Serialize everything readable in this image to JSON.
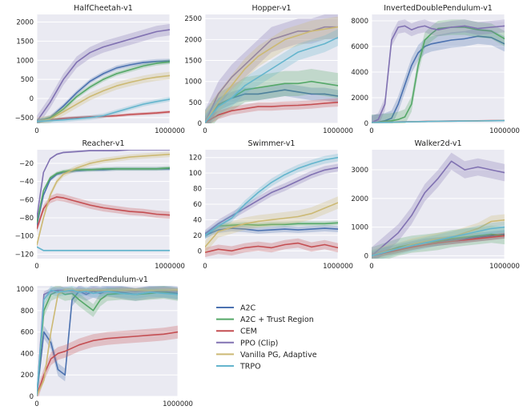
{
  "colors": {
    "A2C": "#4c72b0",
    "A2C + Trust Region": "#55a868",
    "CEM": "#c44e52",
    "PPO (Clip)": "#8172b2",
    "Vanilla PG, Adaptive": "#ccb974",
    "TRPO": "#64b5cd"
  },
  "legend": {
    "placement": "bottom-center",
    "entries": [
      "A2C",
      "A2C + Trust Region",
      "CEM",
      "PPO (Clip)",
      "Vanilla PG, Adaptive",
      "TRPO"
    ]
  },
  "chart_data": [
    {
      "type": "line",
      "title": "HalfCheetah-v1",
      "grid": true,
      "xlim": [
        0,
        1000000
      ],
      "xticks": [
        0,
        1000000
      ],
      "xtick_labels": [
        "0",
        "1000000"
      ],
      "ylim": [
        -650,
        2200
      ],
      "yticks": [
        -500,
        0,
        500,
        1000,
        1500,
        2000
      ],
      "x": [
        0,
        100000,
        200000,
        300000,
        400000,
        500000,
        600000,
        700000,
        800000,
        900000,
        1000000
      ],
      "series": [
        {
          "name": "A2C",
          "values": [
            -600,
            -500,
            -200,
            150,
            450,
            650,
            800,
            880,
            940,
            970,
            980
          ],
          "band": 60
        },
        {
          "name": "A2C + Trust Region",
          "values": [
            -600,
            -520,
            -280,
            50,
            300,
            500,
            650,
            750,
            850,
            920,
            960
          ],
          "band": 60
        },
        {
          "name": "CEM",
          "values": [
            -600,
            -560,
            -520,
            -500,
            -480,
            -470,
            -450,
            -420,
            -400,
            -380,
            -350
          ],
          "band": 40
        },
        {
          "name": "PPO (Clip)",
          "values": [
            -600,
            -100,
            500,
            950,
            1200,
            1350,
            1450,
            1550,
            1650,
            1750,
            1800
          ],
          "band": 150
        },
        {
          "name": "Vanilla PG, Adaptive",
          "values": [
            -600,
            -540,
            -350,
            -150,
            50,
            200,
            330,
            420,
            500,
            560,
            600
          ],
          "band": 100
        },
        {
          "name": "TRPO",
          "values": [
            -600,
            -580,
            -560,
            -530,
            -500,
            -450,
            -350,
            -250,
            -150,
            -80,
            -20
          ],
          "band": 60
        }
      ]
    },
    {
      "type": "line",
      "title": "Hopper-v1",
      "grid": true,
      "xlim": [
        0,
        1000000
      ],
      "xticks": [
        0,
        1000000
      ],
      "xtick_labels": [
        "0",
        "1000000"
      ],
      "ylim": [
        0,
        2600
      ],
      "yticks": [
        0,
        500,
        1000,
        1500,
        2000,
        2500
      ],
      "x": [
        0,
        100000,
        200000,
        300000,
        400000,
        500000,
        600000,
        700000,
        800000,
        900000,
        1000000
      ],
      "series": [
        {
          "name": "A2C",
          "values": [
            20,
            450,
            600,
            700,
            700,
            750,
            800,
            750,
            700,
            700,
            650
          ],
          "band": 150
        },
        {
          "name": "A2C + Trust Region",
          "values": [
            20,
            420,
            600,
            800,
            850,
            900,
            950,
            950,
            1000,
            950,
            900
          ],
          "band": 300
        },
        {
          "name": "CEM",
          "values": [
            20,
            200,
            300,
            350,
            400,
            400,
            420,
            430,
            450,
            480,
            500
          ],
          "band": 100
        },
        {
          "name": "PPO (Clip)",
          "values": [
            20,
            700,
            1100,
            1400,
            1700,
            2000,
            2100,
            2200,
            2200,
            2300,
            2300
          ],
          "band": 300
        },
        {
          "name": "Vanilla PG, Adaptive",
          "values": [
            20,
            500,
            900,
            1300,
            1600,
            1800,
            2000,
            2100,
            2200,
            2250,
            2300
          ],
          "band": 250
        },
        {
          "name": "TRPO",
          "values": [
            20,
            400,
            600,
            900,
            1100,
            1300,
            1500,
            1700,
            1800,
            1900,
            2050
          ],
          "band": 200
        }
      ]
    },
    {
      "type": "line",
      "title": "InvertedDoublePendulum-v1",
      "grid": true,
      "xlim": [
        0,
        1000000
      ],
      "xticks": [
        0,
        1000000
      ],
      "xtick_labels": [
        "0",
        "1000000"
      ],
      "ylim": [
        0,
        8500
      ],
      "yticks": [
        0,
        2000,
        4000,
        6000,
        8000
      ],
      "x": [
        0,
        50000,
        100000,
        150000,
        200000,
        250000,
        300000,
        350000,
        400000,
        450000,
        500000,
        600000,
        700000,
        800000,
        900000,
        1000000
      ],
      "series": [
        {
          "name": "A2C",
          "values": [
            60,
            100,
            200,
            400,
            1500,
            3000,
            4500,
            5500,
            6000,
            6200,
            6300,
            6500,
            6600,
            6800,
            6700,
            6200
          ],
          "band": 600
        },
        {
          "name": "A2C + Trust Region",
          "values": [
            60,
            100,
            150,
            200,
            300,
            500,
            1500,
            4500,
            6500,
            7000,
            7400,
            7500,
            7500,
            7300,
            7200,
            6600
          ],
          "band": 600
        },
        {
          "name": "CEM",
          "values": [
            60,
            80,
            90,
            100,
            110,
            120,
            130,
            140,
            150,
            160,
            170,
            180,
            190,
            200,
            210,
            220
          ],
          "band": 40
        },
        {
          "name": "PPO (Clip)",
          "values": [
            60,
            300,
            1500,
            6500,
            7500,
            7600,
            7300,
            7500,
            7600,
            7400,
            7300,
            7500,
            7600,
            7400,
            7500,
            7600
          ],
          "band": 500
        },
        {
          "name": "Vanilla PG, Adaptive",
          "values": [
            60,
            70,
            80,
            90,
            100,
            110,
            120,
            130,
            140,
            150,
            160,
            170,
            180,
            190,
            200,
            210
          ],
          "band": 30
        },
        {
          "name": "TRPO",
          "values": [
            60,
            70,
            80,
            90,
            100,
            110,
            120,
            130,
            140,
            150,
            160,
            170,
            180,
            190,
            200,
            210
          ],
          "band": 30
        }
      ]
    },
    {
      "type": "line",
      "title": "Reacher-v1",
      "grid": true,
      "xlim": [
        0,
        1000000
      ],
      "xticks": [
        0,
        1000000
      ],
      "xtick_labels": [
        "0",
        "1000000"
      ],
      "ylim": [
        -125,
        -5
      ],
      "yticks": [
        -120,
        -100,
        -80,
        -60,
        -40,
        -20
      ],
      "x": [
        0,
        50000,
        100000,
        150000,
        200000,
        300000,
        400000,
        500000,
        600000,
        700000,
        800000,
        900000,
        1000000
      ],
      "series": [
        {
          "name": "A2C",
          "values": [
            -88,
            -55,
            -38,
            -32,
            -30,
            -28,
            -27,
            -27,
            -26,
            -26,
            -26,
            -26,
            -26
          ],
          "band": 2
        },
        {
          "name": "A2C + Trust Region",
          "values": [
            -85,
            -50,
            -36,
            -31,
            -29,
            -27,
            -27,
            -26,
            -26,
            -26,
            -26,
            -26,
            -25
          ],
          "band": 2
        },
        {
          "name": "CEM",
          "values": [
            -92,
            -70,
            -60,
            -57,
            -58,
            -62,
            -66,
            -69,
            -71,
            -73,
            -74,
            -76,
            -77
          ],
          "band": 4
        },
        {
          "name": "PPO (Clip)",
          "values": [
            -80,
            -30,
            -15,
            -10,
            -8,
            -7,
            -6,
            -6,
            -6,
            -5,
            -5,
            -5,
            -5
          ],
          "band": 1
        },
        {
          "name": "Vanilla PG, Adaptive",
          "values": [
            -110,
            -80,
            -55,
            -40,
            -32,
            -25,
            -20,
            -17,
            -15,
            -13,
            -12,
            -11,
            -10
          ],
          "band": 3
        },
        {
          "name": "TRPO",
          "values": [
            -112,
            -116,
            -116,
            -116,
            -116,
            -116,
            -116,
            -116,
            -116,
            -116,
            -116,
            -116,
            -116
          ],
          "band": 1
        }
      ]
    },
    {
      "type": "line",
      "title": "Swimmer-v1",
      "grid": true,
      "xlim": [
        0,
        1000000
      ],
      "xticks": [
        0,
        1000000
      ],
      "xtick_labels": [
        "0",
        "1000000"
      ],
      "ylim": [
        -10,
        130
      ],
      "yticks": [
        0,
        20,
        40,
        60,
        80,
        100,
        120
      ],
      "x": [
        0,
        100000,
        200000,
        300000,
        400000,
        500000,
        600000,
        700000,
        800000,
        900000,
        1000000
      ],
      "series": [
        {
          "name": "A2C",
          "values": [
            20,
            27,
            29,
            28,
            26,
            27,
            28,
            27,
            28,
            29,
            28
          ],
          "band": 4
        },
        {
          "name": "A2C + Trust Region",
          "values": [
            20,
            32,
            33,
            34,
            33,
            34,
            34,
            35,
            35,
            35,
            36
          ],
          "band": 3
        },
        {
          "name": "CEM",
          "values": [
            -2,
            2,
            0,
            4,
            6,
            4,
            8,
            10,
            5,
            8,
            4
          ],
          "band": 6
        },
        {
          "name": "PPO (Clip)",
          "values": [
            22,
            35,
            45,
            55,
            65,
            75,
            82,
            90,
            98,
            104,
            107
          ],
          "band": 5
        },
        {
          "name": "Vanilla PG, Adaptive",
          "values": [
            5,
            25,
            30,
            35,
            38,
            40,
            42,
            44,
            48,
            55,
            62
          ],
          "band": 8
        },
        {
          "name": "TRPO",
          "values": [
            20,
            32,
            42,
            60,
            75,
            88,
            98,
            106,
            112,
            117,
            120
          ],
          "band": 5
        }
      ]
    },
    {
      "type": "line",
      "title": "Walker2d-v1",
      "grid": true,
      "xlim": [
        0,
        1000000
      ],
      "xticks": [
        0,
        1000000
      ],
      "xtick_labels": [
        "0",
        "1000000"
      ],
      "ylim": [
        -100,
        3700
      ],
      "yticks": [
        0,
        1000,
        2000,
        3000
      ],
      "x": [
        0,
        100000,
        200000,
        300000,
        400000,
        500000,
        600000,
        700000,
        800000,
        900000,
        1000000
      ],
      "series": [
        {
          "name": "A2C",
          "values": [
            0,
            150,
            250,
            350,
            450,
            500,
            550,
            600,
            650,
            700,
            750
          ],
          "band": 150
        },
        {
          "name": "A2C + Trust Region",
          "values": [
            0,
            150,
            300,
            400,
            450,
            500,
            600,
            650,
            700,
            750,
            700
          ],
          "band": 300
        },
        {
          "name": "CEM",
          "values": [
            0,
            100,
            200,
            300,
            380,
            450,
            500,
            550,
            600,
            650,
            700
          ],
          "band": 100
        },
        {
          "name": "PPO (Clip)",
          "values": [
            0,
            400,
            800,
            1400,
            2200,
            2700,
            3300,
            3000,
            3100,
            3000,
            2900
          ],
          "band": 300
        },
        {
          "name": "Vanilla PG, Adaptive",
          "values": [
            0,
            150,
            250,
            400,
            500,
            600,
            650,
            800,
            950,
            1200,
            1250
          ],
          "band": 200
        },
        {
          "name": "TRPO",
          "values": [
            0,
            120,
            250,
            350,
            450,
            550,
            650,
            750,
            850,
            950,
            1000
          ],
          "band": 200
        }
      ]
    },
    {
      "type": "line",
      "title": "InvertedPendulum-v1",
      "grid": true,
      "xlim": [
        0,
        1000000
      ],
      "xticks": [
        0,
        1000000
      ],
      "xtick_labels": [
        "0",
        "1000000"
      ],
      "ylim": [
        0,
        1030
      ],
      "yticks": [
        0,
        200,
        400,
        600,
        800,
        1000
      ],
      "x": [
        0,
        50000,
        100000,
        150000,
        200000,
        250000,
        300000,
        350000,
        400000,
        450000,
        500000,
        600000,
        700000,
        800000,
        900000,
        1000000
      ],
      "series": [
        {
          "name": "A2C",
          "values": [
            10,
            600,
            500,
            250,
            200,
            900,
            980,
            950,
            980,
            960,
            990,
            970,
            950,
            970,
            980,
            960
          ],
          "band": 60
        },
        {
          "name": "A2C + Trust Region",
          "values": [
            10,
            800,
            950,
            980,
            950,
            960,
            900,
            850,
            800,
            900,
            950,
            960,
            950,
            960,
            970,
            950
          ],
          "band": 60
        },
        {
          "name": "CEM",
          "values": [
            10,
            200,
            350,
            400,
            420,
            450,
            480,
            500,
            520,
            530,
            540,
            550,
            560,
            570,
            580,
            600
          ],
          "band": 60
        },
        {
          "name": "PPO (Clip)",
          "values": [
            10,
            950,
            980,
            990,
            990,
            980,
            990,
            970,
            990,
            980,
            990,
            990,
            980,
            990,
            990,
            980
          ],
          "band": 30
        },
        {
          "name": "Vanilla PG, Adaptive",
          "values": [
            10,
            150,
            600,
            950,
            990,
            990,
            990,
            990,
            990,
            990,
            990,
            990,
            990,
            990,
            990,
            990
          ],
          "band": 20
        },
        {
          "name": "TRPO",
          "values": [
            10,
            900,
            990,
            970,
            980,
            990,
            970,
            980,
            960,
            970,
            980,
            960,
            950,
            970,
            960,
            950
          ],
          "band": 40
        }
      ]
    }
  ]
}
